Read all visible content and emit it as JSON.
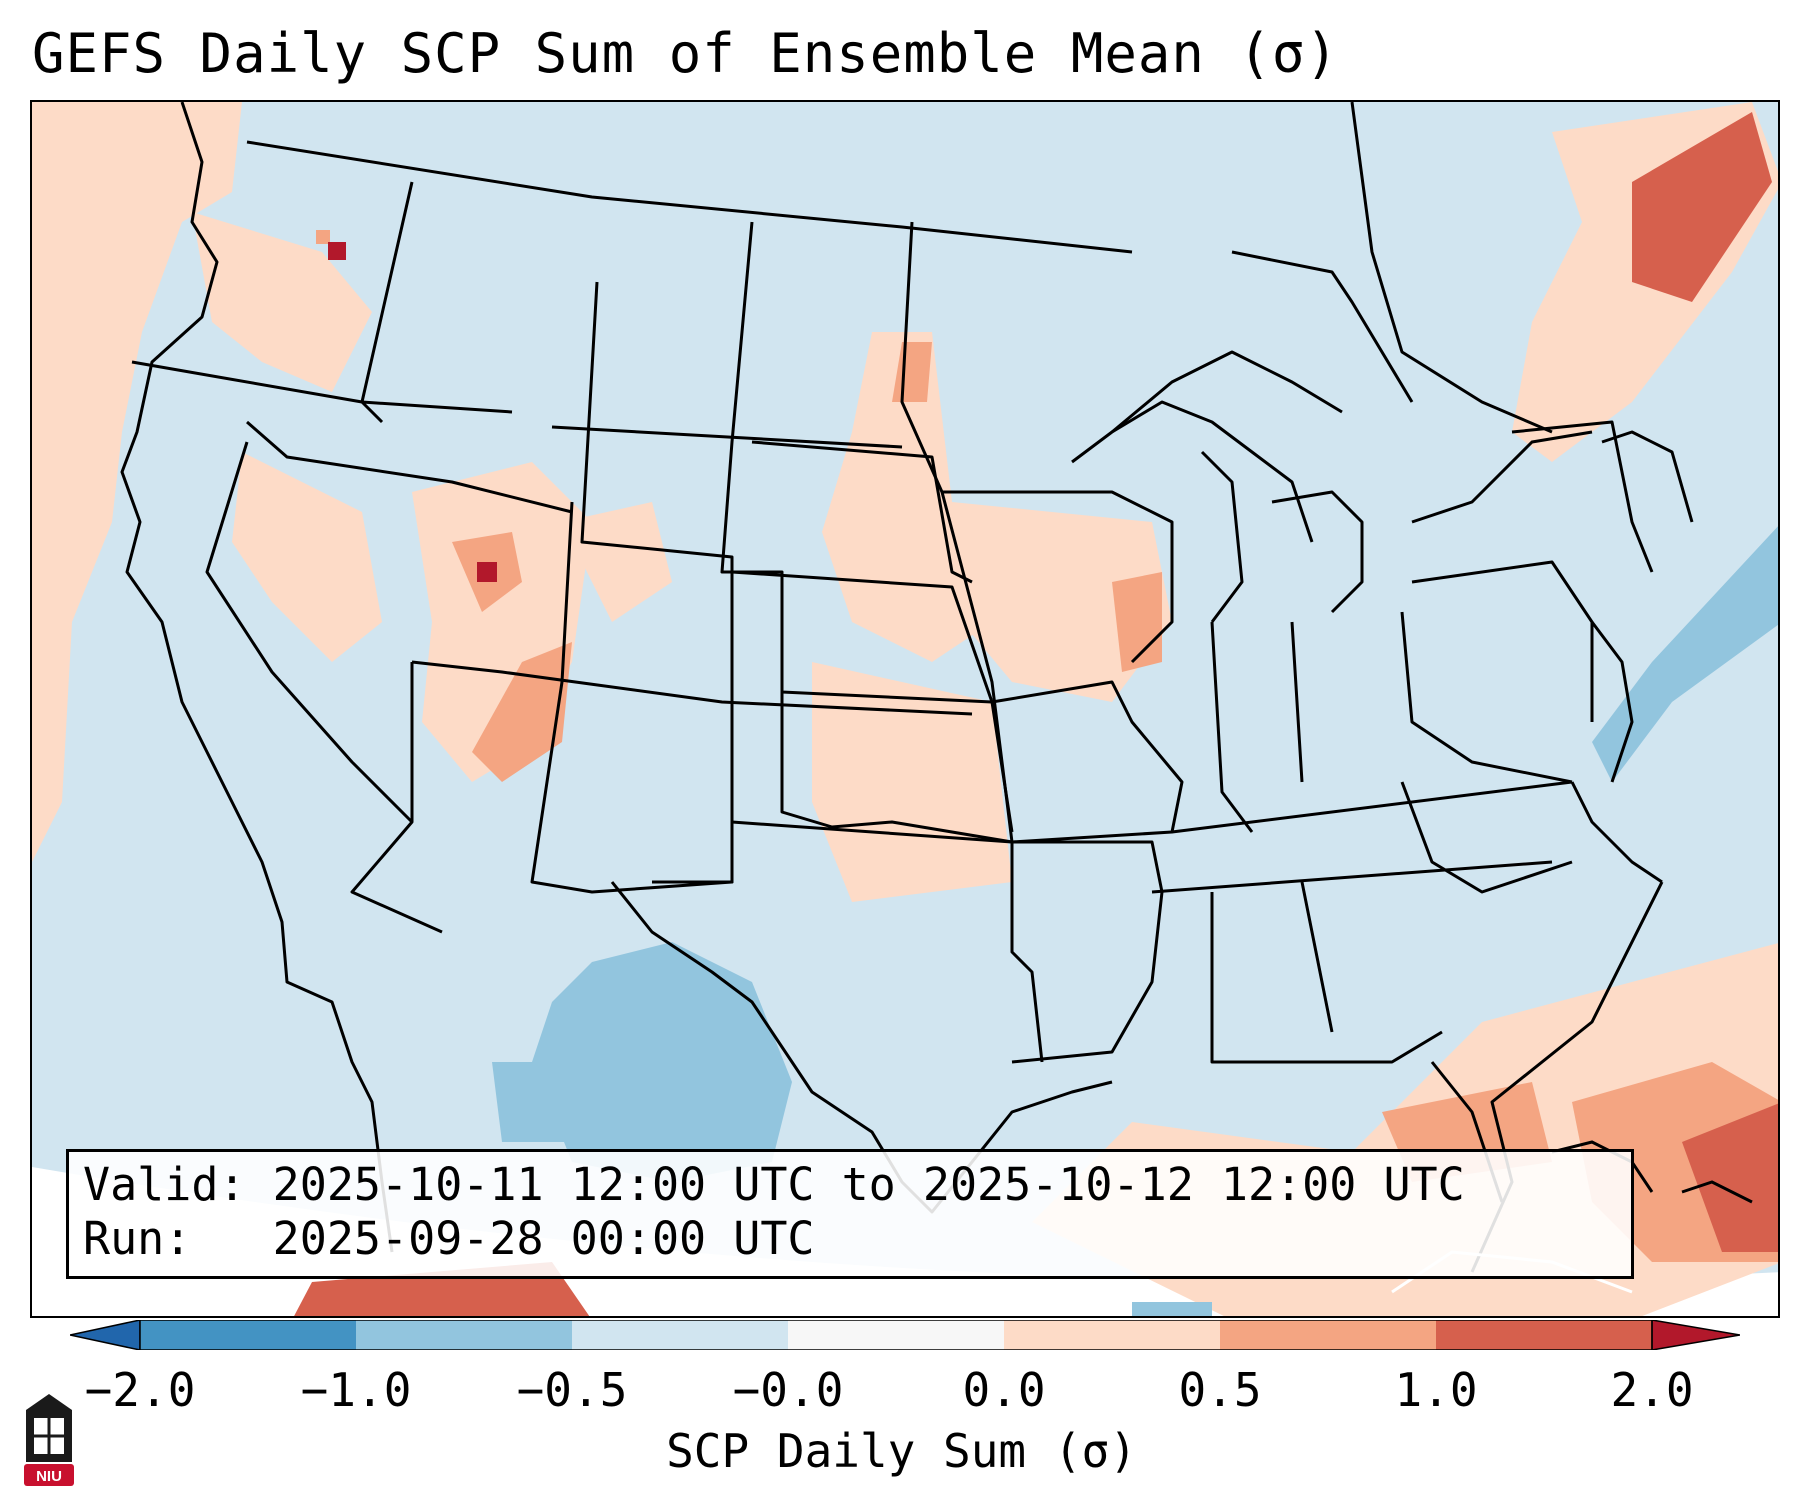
{
  "title": "GEFS Daily SCP Sum of Ensemble Mean (σ)",
  "info": {
    "valid_label": "Valid:",
    "valid_value": "2025-10-11 12:00 UTC to 2025-10-12 12:00 UTC",
    "run_label": "Run:",
    "run_value": "2025-09-28 00:00 UTC"
  },
  "colorbar": {
    "label": "SCP Daily Sum (σ)",
    "tick_labels": [
      "−2.0",
      "−1.0",
      "−0.5",
      "−0.0",
      "0.0",
      "0.5",
      "1.0",
      "2.0"
    ],
    "bins": [
      {
        "range": "< -2.0",
        "color": "#2166ac"
      },
      {
        "range": "-2.0 to -1.0",
        "color": "#4393c3"
      },
      {
        "range": "-1.0 to -0.5",
        "color": "#92c5de"
      },
      {
        "range": "-0.5 to -0.0",
        "color": "#d1e5f0"
      },
      {
        "range": "-0.0 to 0.0",
        "color": "#f7f7f7"
      },
      {
        "range": "0.0 to 0.5",
        "color": "#fddbc7"
      },
      {
        "range": "0.5 to 1.0",
        "color": "#f4a582"
      },
      {
        "range": "1.0 to 2.0",
        "color": "#d6604d"
      },
      {
        "range": "> 2.0",
        "color": "#b2182b"
      }
    ]
  },
  "logo_text": "NIU",
  "colors": {
    "map_background": "#d1e5f0",
    "positive_light": "#fddbc7",
    "positive_mid": "#f4a582",
    "positive_high": "#d6604d",
    "positive_max": "#b2182b",
    "negative_light": "#92c5de",
    "boundary": "#000000",
    "logo_red": "#c8102e"
  }
}
